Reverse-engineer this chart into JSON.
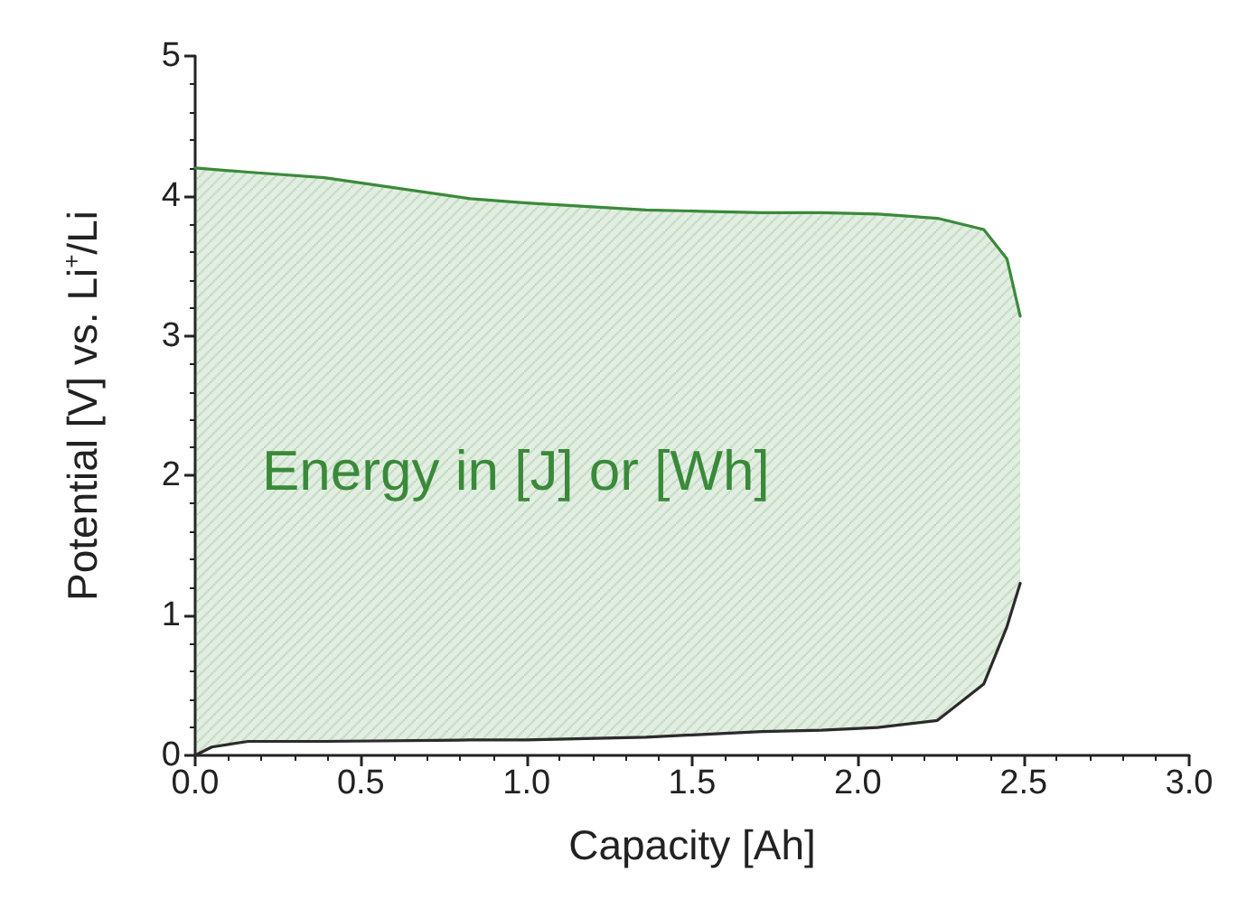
{
  "chart_data": {
    "type": "line",
    "xlabel": "Capacity [Ah]",
    "ylabel": "Potential [V] vs. Li$^{+}$/Li",
    "x": [
      0,
      0.05,
      0.16,
      0.39,
      0.83,
      1.0,
      1.36,
      1.53,
      1.71,
      1.89,
      2.06,
      2.24,
      2.38,
      2.45,
      2.49
    ],
    "series": [
      {
        "color": "#2b2b2b",
        "values": [
          0.0,
          0.06,
          0.1,
          0.1,
          0.11,
          0.11,
          0.13,
          0.15,
          0.17,
          0.18,
          0.2,
          0.25,
          0.51,
          0.92,
          1.23
        ]
      },
      {
        "type": "area",
        "color": "#3a8a3a",
        "values": [
          4.2,
          4.19,
          4.17,
          4.13,
          3.98,
          3.95,
          3.9,
          3.89,
          3.88,
          3.88,
          3.87,
          3.84,
          3.76,
          3.55,
          3.14
        ]
      }
    ],
    "annotations": [
      "Energy in [J] or [Wh]"
    ],
    "xlim": [
      0,
      3
    ],
    "xticks": [
      {
        "value": 0,
        "label": "0.0"
      },
      0.5,
      {
        "value": 1,
        "label": "1.0"
      },
      1.5,
      {
        "value": 2,
        "label": "2.0"
      },
      2.5,
      {
        "value": 3,
        "label": "3.0"
      }
    ],
    "ylim": [
      0,
      5
    ],
    "yticks": [
      0,
      1,
      2,
      3,
      4,
      5
    ],
    "grid": false,
    "marker": "none",
    "line_style": "solid"
  }
}
